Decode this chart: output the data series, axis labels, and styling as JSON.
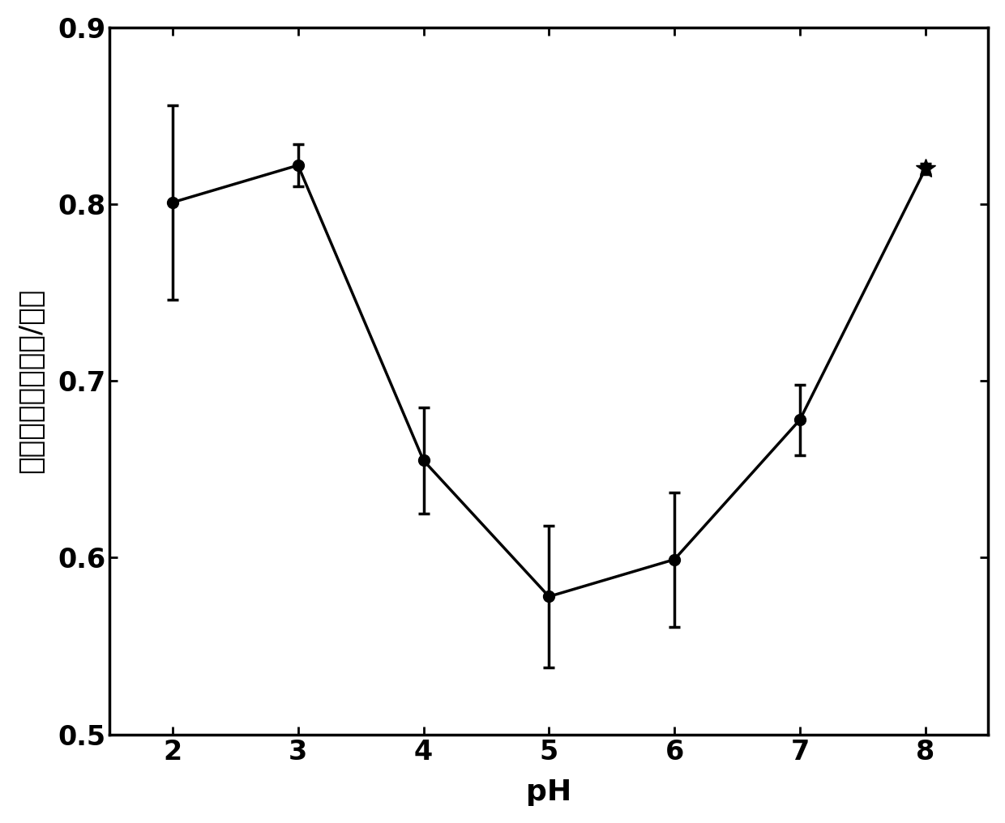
{
  "x": [
    2,
    3,
    4,
    5,
    6,
    7,
    8
  ],
  "y": [
    0.801,
    0.822,
    0.655,
    0.578,
    0.599,
    0.678,
    0.82
  ],
  "yerr": [
    0.055,
    0.012,
    0.03,
    0.04,
    0.038,
    0.02,
    0.003
  ],
  "xlabel": "pH",
  "ylabel": "乙酸浓度（毫摩尔/升）",
  "ylim": [
    0.5,
    0.9
  ],
  "yticks": [
    0.5,
    0.6,
    0.7,
    0.8,
    0.9
  ],
  "xticks": [
    2,
    3,
    4,
    5,
    6,
    7,
    8
  ],
  "line_color": "#000000",
  "markersize": 10,
  "star_markersize": 18,
  "linewidth": 2.5,
  "capsize": 5,
  "background_color": "#ffffff",
  "label_fontsize": 26,
  "tick_fontsize": 24,
  "spine_linewidth": 2.5
}
